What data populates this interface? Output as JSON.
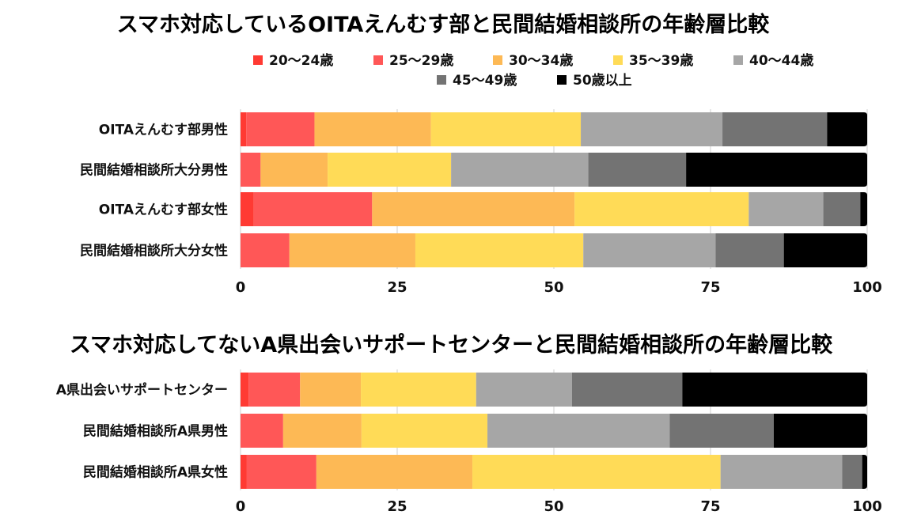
{
  "chart_data": [
    {
      "type": "bar",
      "orientation": "horizontal",
      "stacked": true,
      "title": "スマホ対応しているOITAえんむす部と民間結婚相談所の年齢層比較",
      "categories": [
        "OITAえんむす部男性",
        "民間結婚相談所大分男性",
        "OITAえんむす部女性",
        "民間結婚相談所大分女性"
      ],
      "series": [
        {
          "name": "20〜24歳",
          "color": "#FF3A33",
          "values": [
            0.9,
            0,
            2.1,
            0
          ]
        },
        {
          "name": "25〜29歳",
          "color": "#FF5757",
          "values": [
            10.9,
            3.2,
            18.9,
            7.8
          ]
        },
        {
          "name": "30〜34歳",
          "color": "#FDB955",
          "values": [
            18.6,
            10.7,
            32.3,
            20.1
          ]
        },
        {
          "name": "35〜39歳",
          "color": "#FFDB57",
          "values": [
            23.9,
            19.7,
            27.8,
            26.8
          ]
        },
        {
          "name": "40〜44歳",
          "color": "#A6A6A6",
          "values": [
            22.6,
            21.9,
            11.9,
            21.1
          ]
        },
        {
          "name": "45〜49歳",
          "color": "#737373",
          "values": [
            16.7,
            15.6,
            5.9,
            10.9
          ]
        },
        {
          "name": "50歳以上",
          "color": "#000000",
          "values": [
            6.4,
            28.9,
            1.1,
            13.3
          ]
        }
      ],
      "xlim": [
        0,
        100
      ],
      "xticks": [
        "0",
        "25",
        "50",
        "75",
        "100"
      ],
      "grid": true,
      "legend": "top"
    },
    {
      "type": "bar",
      "orientation": "horizontal",
      "stacked": true,
      "title": "スマホ対応してないA県出会いサポートセンターと民間結婚相談所の年齢層比較",
      "categories": [
        "A県出会いサポートセンター",
        "民間結婚相談所A県男性",
        "民間結婚相談所A県女性"
      ],
      "series": [
        {
          "name": "20〜24歳",
          "color": "#FF3A33",
          "values": [
            1.3,
            0,
            1.0
          ]
        },
        {
          "name": "25〜29歳",
          "color": "#FF5757",
          "values": [
            8.2,
            6.8,
            11.1
          ]
        },
        {
          "name": "30〜34歳",
          "color": "#FDB955",
          "values": [
            9.7,
            12.5,
            24.9
          ]
        },
        {
          "name": "35〜39歳",
          "color": "#FFDB57",
          "values": [
            18.4,
            20.1,
            39.6
          ]
        },
        {
          "name": "40〜44歳",
          "color": "#A6A6A6",
          "values": [
            15.3,
            29.1,
            19.4
          ]
        },
        {
          "name": "45〜49歳",
          "color": "#737373",
          "values": [
            17.6,
            16.6,
            3.2
          ]
        },
        {
          "name": "50歳以上",
          "color": "#000000",
          "values": [
            29.5,
            14.9,
            0.8
          ]
        }
      ],
      "xlim": [
        0,
        100
      ],
      "xticks": [
        "0",
        "25",
        "50",
        "75",
        "100"
      ],
      "grid": true
    }
  ]
}
